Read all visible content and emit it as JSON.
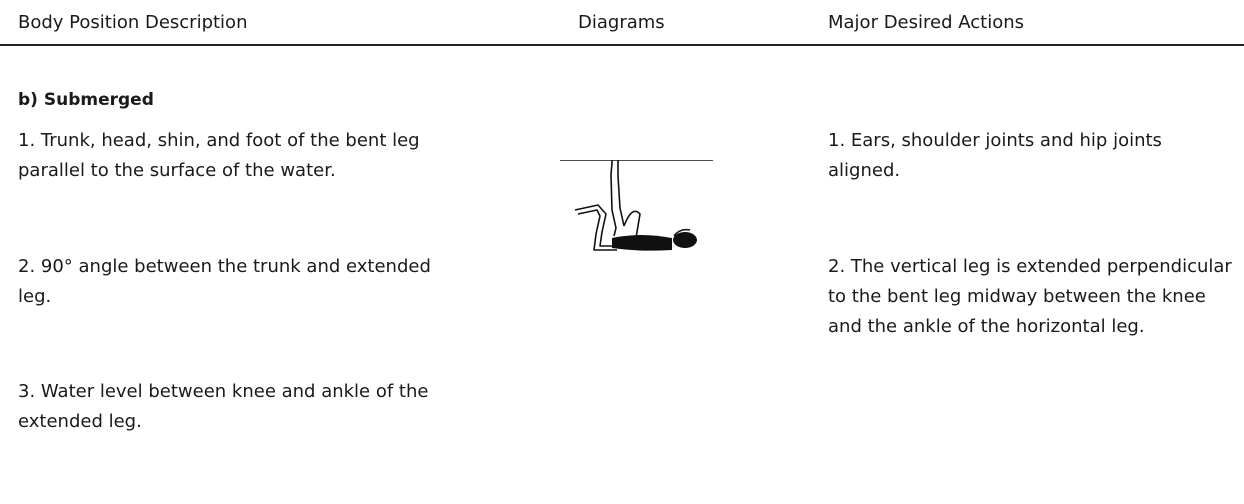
{
  "header": {
    "columns": [
      "Body Position Description",
      "Diagrams",
      "Major Desired Actions"
    ]
  },
  "section": {
    "title": "b) Submerged"
  },
  "rows": [
    {
      "description": "1. Trunk, head, shin, and foot of the bent leg parallel to the surface of the water.",
      "action": "1. Ears, shoulder joints and hip joints aligned."
    },
    {
      "description": "2. 90° angle between the trunk and extended leg.",
      "action": "2. The vertical leg is extended perpendicular to the bent leg midway between the knee and the ankle of the horizontal leg."
    },
    {
      "description": "3. Water level between knee and ankle of the extended leg."
    }
  ]
}
